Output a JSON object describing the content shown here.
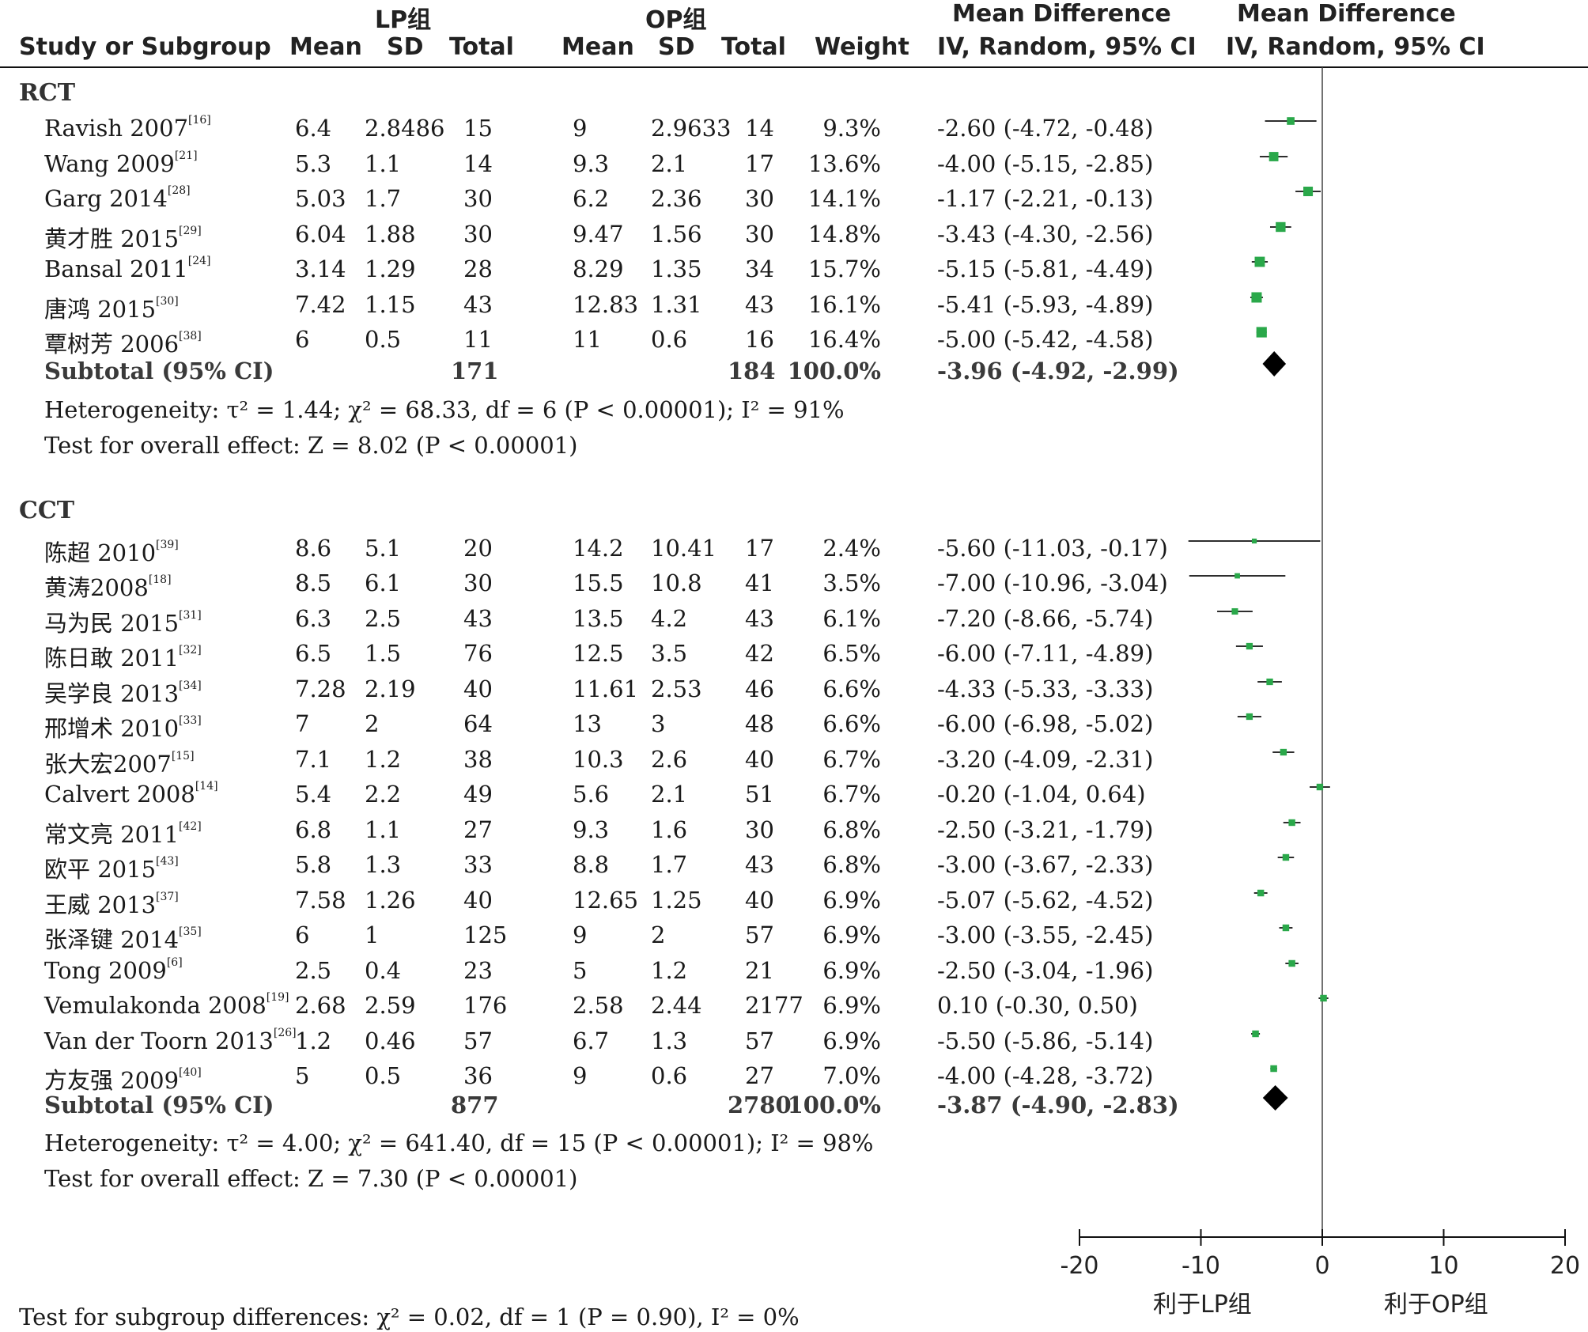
{
  "header": {
    "group1": "LP组",
    "group2": "OP组",
    "md_col_title": "Mean Difference",
    "md_col_method": "IV, Random, 95% CI",
    "plot_title": "Mean Difference",
    "plot_method": "IV, Random, 95% CI",
    "study": "Study or Subgroup",
    "mean1": "Mean",
    "sd1": "SD",
    "total1": "Total",
    "mean2": "Mean",
    "sd2": "SD",
    "total2": "Total",
    "weight": "Weight"
  },
  "subgroups": [
    {
      "name": "RCT",
      "rows": [
        {
          "study": "Ravish 2007",
          "ref": "[16]",
          "m1": "6.4",
          "sd1": "2.8486",
          "n1": "15",
          "m2": "9",
          "sd2": "2.9633",
          "n2": "14",
          "weight": "9.3%",
          "ci": "-2.60 (-4.72, -0.48)"
        },
        {
          "study": "Wang 2009",
          "ref": "[21]",
          "m1": "5.3",
          "sd1": "1.1",
          "n1": "14",
          "m2": "9.3",
          "sd2": "2.1",
          "n2": "17",
          "weight": "13.6%",
          "ci": "-4.00 (-5.15, -2.85)"
        },
        {
          "study": "Garg 2014",
          "ref": "[28]",
          "m1": "5.03",
          "sd1": "1.7",
          "n1": "30",
          "m2": "6.2",
          "sd2": "2.36",
          "n2": "30",
          "weight": "14.1%",
          "ci": "-1.17 (-2.21, -0.13)"
        },
        {
          "study": "黄才胜 2015",
          "ref": "[29]",
          "m1": "6.04",
          "sd1": "1.88",
          "n1": "30",
          "m2": "9.47",
          "sd2": "1.56",
          "n2": "30",
          "weight": "14.8%",
          "ci": "-3.43 (-4.30, -2.56)"
        },
        {
          "study": "Bansal 2011",
          "ref": "[24]",
          "m1": "3.14",
          "sd1": "1.29",
          "n1": "28",
          "m2": "8.29",
          "sd2": "1.35",
          "n2": "34",
          "weight": "15.7%",
          "ci": "-5.15 (-5.81, -4.49)"
        },
        {
          "study": "唐鸿 2015",
          "ref": "[30]",
          "m1": "7.42",
          "sd1": "1.15",
          "n1": "43",
          "m2": "12.83",
          "sd2": "1.31",
          "n2": "43",
          "weight": "16.1%",
          "ci": "-5.41 (-5.93, -4.89)"
        },
        {
          "study": "覃树芳 2006",
          "ref": "[38]",
          "m1": "6",
          "sd1": "0.5",
          "n1": "11",
          "m2": "11",
          "sd2": "0.6",
          "n2": "16",
          "weight": "16.4%",
          "ci": "-5.00 (-5.42, -4.58)"
        }
      ],
      "subtotal": {
        "label": "Subtotal (95% CI)",
        "n1": "171",
        "n2": "184",
        "weight": "100.0%",
        "ci": "-3.96 (-4.92, -2.99)"
      },
      "heterogeneity": "Heterogeneity: τ² = 1.44; χ² = 68.33, df = 6 (P < 0.00001); I² = 91%",
      "overall": "Test for overall effect: Z = 8.02 (P < 0.00001)"
    },
    {
      "name": "CCT",
      "rows": [
        {
          "study": "陈超 2010",
          "ref": "[39]",
          "m1": "8.6",
          "sd1": "5.1",
          "n1": "20",
          "m2": "14.2",
          "sd2": "10.41",
          "n2": "17",
          "weight": "2.4%",
          "ci": "-5.60 (-11.03, -0.17)"
        },
        {
          "study": "黄涛2008",
          "ref": "[18]",
          "m1": "8.5",
          "sd1": "6.1",
          "n1": "30",
          "m2": "15.5",
          "sd2": "10.8",
          "n2": "41",
          "weight": "3.5%",
          "ci": "-7.00 (-10.96, -3.04)"
        },
        {
          "study": "马为民 2015",
          "ref": "[31]",
          "m1": "6.3",
          "sd1": "2.5",
          "n1": "43",
          "m2": "13.5",
          "sd2": "4.2",
          "n2": "43",
          "weight": "6.1%",
          "ci": "-7.20 (-8.66, -5.74)"
        },
        {
          "study": "陈日敢 2011",
          "ref": "[32]",
          "m1": "6.5",
          "sd1": "1.5",
          "n1": "76",
          "m2": "12.5",
          "sd2": "3.5",
          "n2": "42",
          "weight": "6.5%",
          "ci": "-6.00 (-7.11, -4.89)"
        },
        {
          "study": "吴学良 2013",
          "ref": "[34]",
          "m1": "7.28",
          "sd1": "2.19",
          "n1": "40",
          "m2": "11.61",
          "sd2": "2.53",
          "n2": "46",
          "weight": "6.6%",
          "ci": "-4.33 (-5.33, -3.33)"
        },
        {
          "study": "邢增术 2010",
          "ref": "[33]",
          "m1": "7",
          "sd1": "2",
          "n1": "64",
          "m2": "13",
          "sd2": "3",
          "n2": "48",
          "weight": "6.6%",
          "ci": "-6.00 (-6.98, -5.02)"
        },
        {
          "study": "张大宏2007",
          "ref": "[15]",
          "m1": "7.1",
          "sd1": "1.2",
          "n1": "38",
          "m2": "10.3",
          "sd2": "2.6",
          "n2": "40",
          "weight": "6.7%",
          "ci": "-3.20 (-4.09, -2.31)"
        },
        {
          "study": "Calvert 2008",
          "ref": "[14]",
          "m1": "5.4",
          "sd1": "2.2",
          "n1": "49",
          "m2": "5.6",
          "sd2": "2.1",
          "n2": "51",
          "weight": "6.7%",
          "ci": "-0.20 (-1.04, 0.64)"
        },
        {
          "study": "常文亮 2011",
          "ref": "[42]",
          "m1": "6.8",
          "sd1": "1.1",
          "n1": "27",
          "m2": "9.3",
          "sd2": "1.6",
          "n2": "30",
          "weight": "6.8%",
          "ci": "-2.50 (-3.21, -1.79)"
        },
        {
          "study": "欧平 2015",
          "ref": "[43]",
          "m1": "5.8",
          "sd1": "1.3",
          "n1": "33",
          "m2": "8.8",
          "sd2": "1.7",
          "n2": "43",
          "weight": "6.8%",
          "ci": "-3.00 (-3.67, -2.33)"
        },
        {
          "study": "王威 2013",
          "ref": "[37]",
          "m1": "7.58",
          "sd1": "1.26",
          "n1": "40",
          "m2": "12.65",
          "sd2": "1.25",
          "n2": "40",
          "weight": "6.9%",
          "ci": "-5.07 (-5.62, -4.52)"
        },
        {
          "study": "张泽键 2014",
          "ref": "[35]",
          "m1": "6",
          "sd1": "1",
          "n1": "125",
          "m2": "9",
          "sd2": "2",
          "n2": "57",
          "weight": "6.9%",
          "ci": "-3.00 (-3.55, -2.45)"
        },
        {
          "study": "Tong 2009",
          "ref": "[6]",
          "m1": "2.5",
          "sd1": "0.4",
          "n1": "23",
          "m2": "5",
          "sd2": "1.2",
          "n2": "21",
          "weight": "6.9%",
          "ci": "-2.50 (-3.04, -1.96)"
        },
        {
          "study": "Vemulakonda 2008",
          "ref": "[19]",
          "m1": "2.68",
          "sd1": "2.59",
          "n1": "176",
          "m2": "2.58",
          "sd2": "2.44",
          "n2": "2177",
          "weight": "6.9%",
          "ci": "0.10 (-0.30, 0.50)"
        },
        {
          "study": "Van der Toorn 2013",
          "ref": "[26]",
          "m1": "1.2",
          "sd1": "0.46",
          "n1": "57",
          "m2": "6.7",
          "sd2": "1.3",
          "n2": "57",
          "weight": "6.9%",
          "ci": "-5.50 (-5.86, -5.14)"
        },
        {
          "study": "方友强 2009",
          "ref": "[40]",
          "m1": "5",
          "sd1": "0.5",
          "n1": "36",
          "m2": "9",
          "sd2": "0.6",
          "n2": "27",
          "weight": "7.0%",
          "ci": "-4.00 (-4.28, -3.72)"
        }
      ],
      "subtotal": {
        "label": "Subtotal (95% CI)",
        "n1": "877",
        "n2": "2780",
        "weight": "100.0%",
        "ci": "-3.87 (-4.90, -2.83)"
      },
      "heterogeneity": "Heterogeneity: τ² = 4.00; χ² = 641.40, df = 15 (P < 0.00001); I² = 98%",
      "overall": "Test for overall effect: Z = 7.30 (P < 0.00001)"
    }
  ],
  "footer": {
    "subgroup_test": "Test for subgroup differences: χ² = 0.02, df = 1 (P = 0.90), I² = 0%",
    "favours_left": "利于LP组",
    "favours_right": "利于OP组"
  },
  "chart_data": {
    "type": "forest",
    "xlim": [
      -20,
      20
    ],
    "xticks": [
      -20,
      -10,
      0,
      10,
      20
    ],
    "xtick_labels": [
      "-20",
      "-10",
      "0",
      "10",
      "20"
    ],
    "null_line": 0,
    "marker_color": "#2aa84a",
    "studies": [
      {
        "group": "RCT",
        "md": -2.6,
        "lo": -4.72,
        "hi": -0.48,
        "weight": 9.3
      },
      {
        "group": "RCT",
        "md": -4.0,
        "lo": -5.15,
        "hi": -2.85,
        "weight": 13.6
      },
      {
        "group": "RCT",
        "md": -1.17,
        "lo": -2.21,
        "hi": -0.13,
        "weight": 14.1
      },
      {
        "group": "RCT",
        "md": -3.43,
        "lo": -4.3,
        "hi": -2.56,
        "weight": 14.8
      },
      {
        "group": "RCT",
        "md": -5.15,
        "lo": -5.81,
        "hi": -4.49,
        "weight": 15.7
      },
      {
        "group": "RCT",
        "md": -5.41,
        "lo": -5.93,
        "hi": -4.89,
        "weight": 16.1
      },
      {
        "group": "RCT",
        "md": -5.0,
        "lo": -5.42,
        "hi": -4.58,
        "weight": 16.4
      },
      {
        "group": "CCT",
        "md": -5.6,
        "lo": -11.03,
        "hi": -0.17,
        "weight": 2.4
      },
      {
        "group": "CCT",
        "md": -7.0,
        "lo": -10.96,
        "hi": -3.04,
        "weight": 3.5
      },
      {
        "group": "CCT",
        "md": -7.2,
        "lo": -8.66,
        "hi": -5.74,
        "weight": 6.1
      },
      {
        "group": "CCT",
        "md": -6.0,
        "lo": -7.11,
        "hi": -4.89,
        "weight": 6.5
      },
      {
        "group": "CCT",
        "md": -4.33,
        "lo": -5.33,
        "hi": -3.33,
        "weight": 6.6
      },
      {
        "group": "CCT",
        "md": -6.0,
        "lo": -6.98,
        "hi": -5.02,
        "weight": 6.6
      },
      {
        "group": "CCT",
        "md": -3.2,
        "lo": -4.09,
        "hi": -2.31,
        "weight": 6.7
      },
      {
        "group": "CCT",
        "md": -0.2,
        "lo": -1.04,
        "hi": 0.64,
        "weight": 6.7
      },
      {
        "group": "CCT",
        "md": -2.5,
        "lo": -3.21,
        "hi": -1.79,
        "weight": 6.8
      },
      {
        "group": "CCT",
        "md": -3.0,
        "lo": -3.67,
        "hi": -2.33,
        "weight": 6.8
      },
      {
        "group": "CCT",
        "md": -5.07,
        "lo": -5.62,
        "hi": -4.52,
        "weight": 6.9
      },
      {
        "group": "CCT",
        "md": -3.0,
        "lo": -3.55,
        "hi": -2.45,
        "weight": 6.9
      },
      {
        "group": "CCT",
        "md": -2.5,
        "lo": -3.04,
        "hi": -1.96,
        "weight": 6.9
      },
      {
        "group": "CCT",
        "md": 0.1,
        "lo": -0.3,
        "hi": 0.5,
        "weight": 6.9
      },
      {
        "group": "CCT",
        "md": -5.5,
        "lo": -5.86,
        "hi": -5.14,
        "weight": 6.9
      },
      {
        "group": "CCT",
        "md": -4.0,
        "lo": -4.28,
        "hi": -3.72,
        "weight": 7.0
      }
    ],
    "subtotals": [
      {
        "group": "RCT",
        "md": -3.96,
        "lo": -4.92,
        "hi": -2.99
      },
      {
        "group": "CCT",
        "md": -3.87,
        "lo": -4.9,
        "hi": -2.83
      }
    ]
  }
}
